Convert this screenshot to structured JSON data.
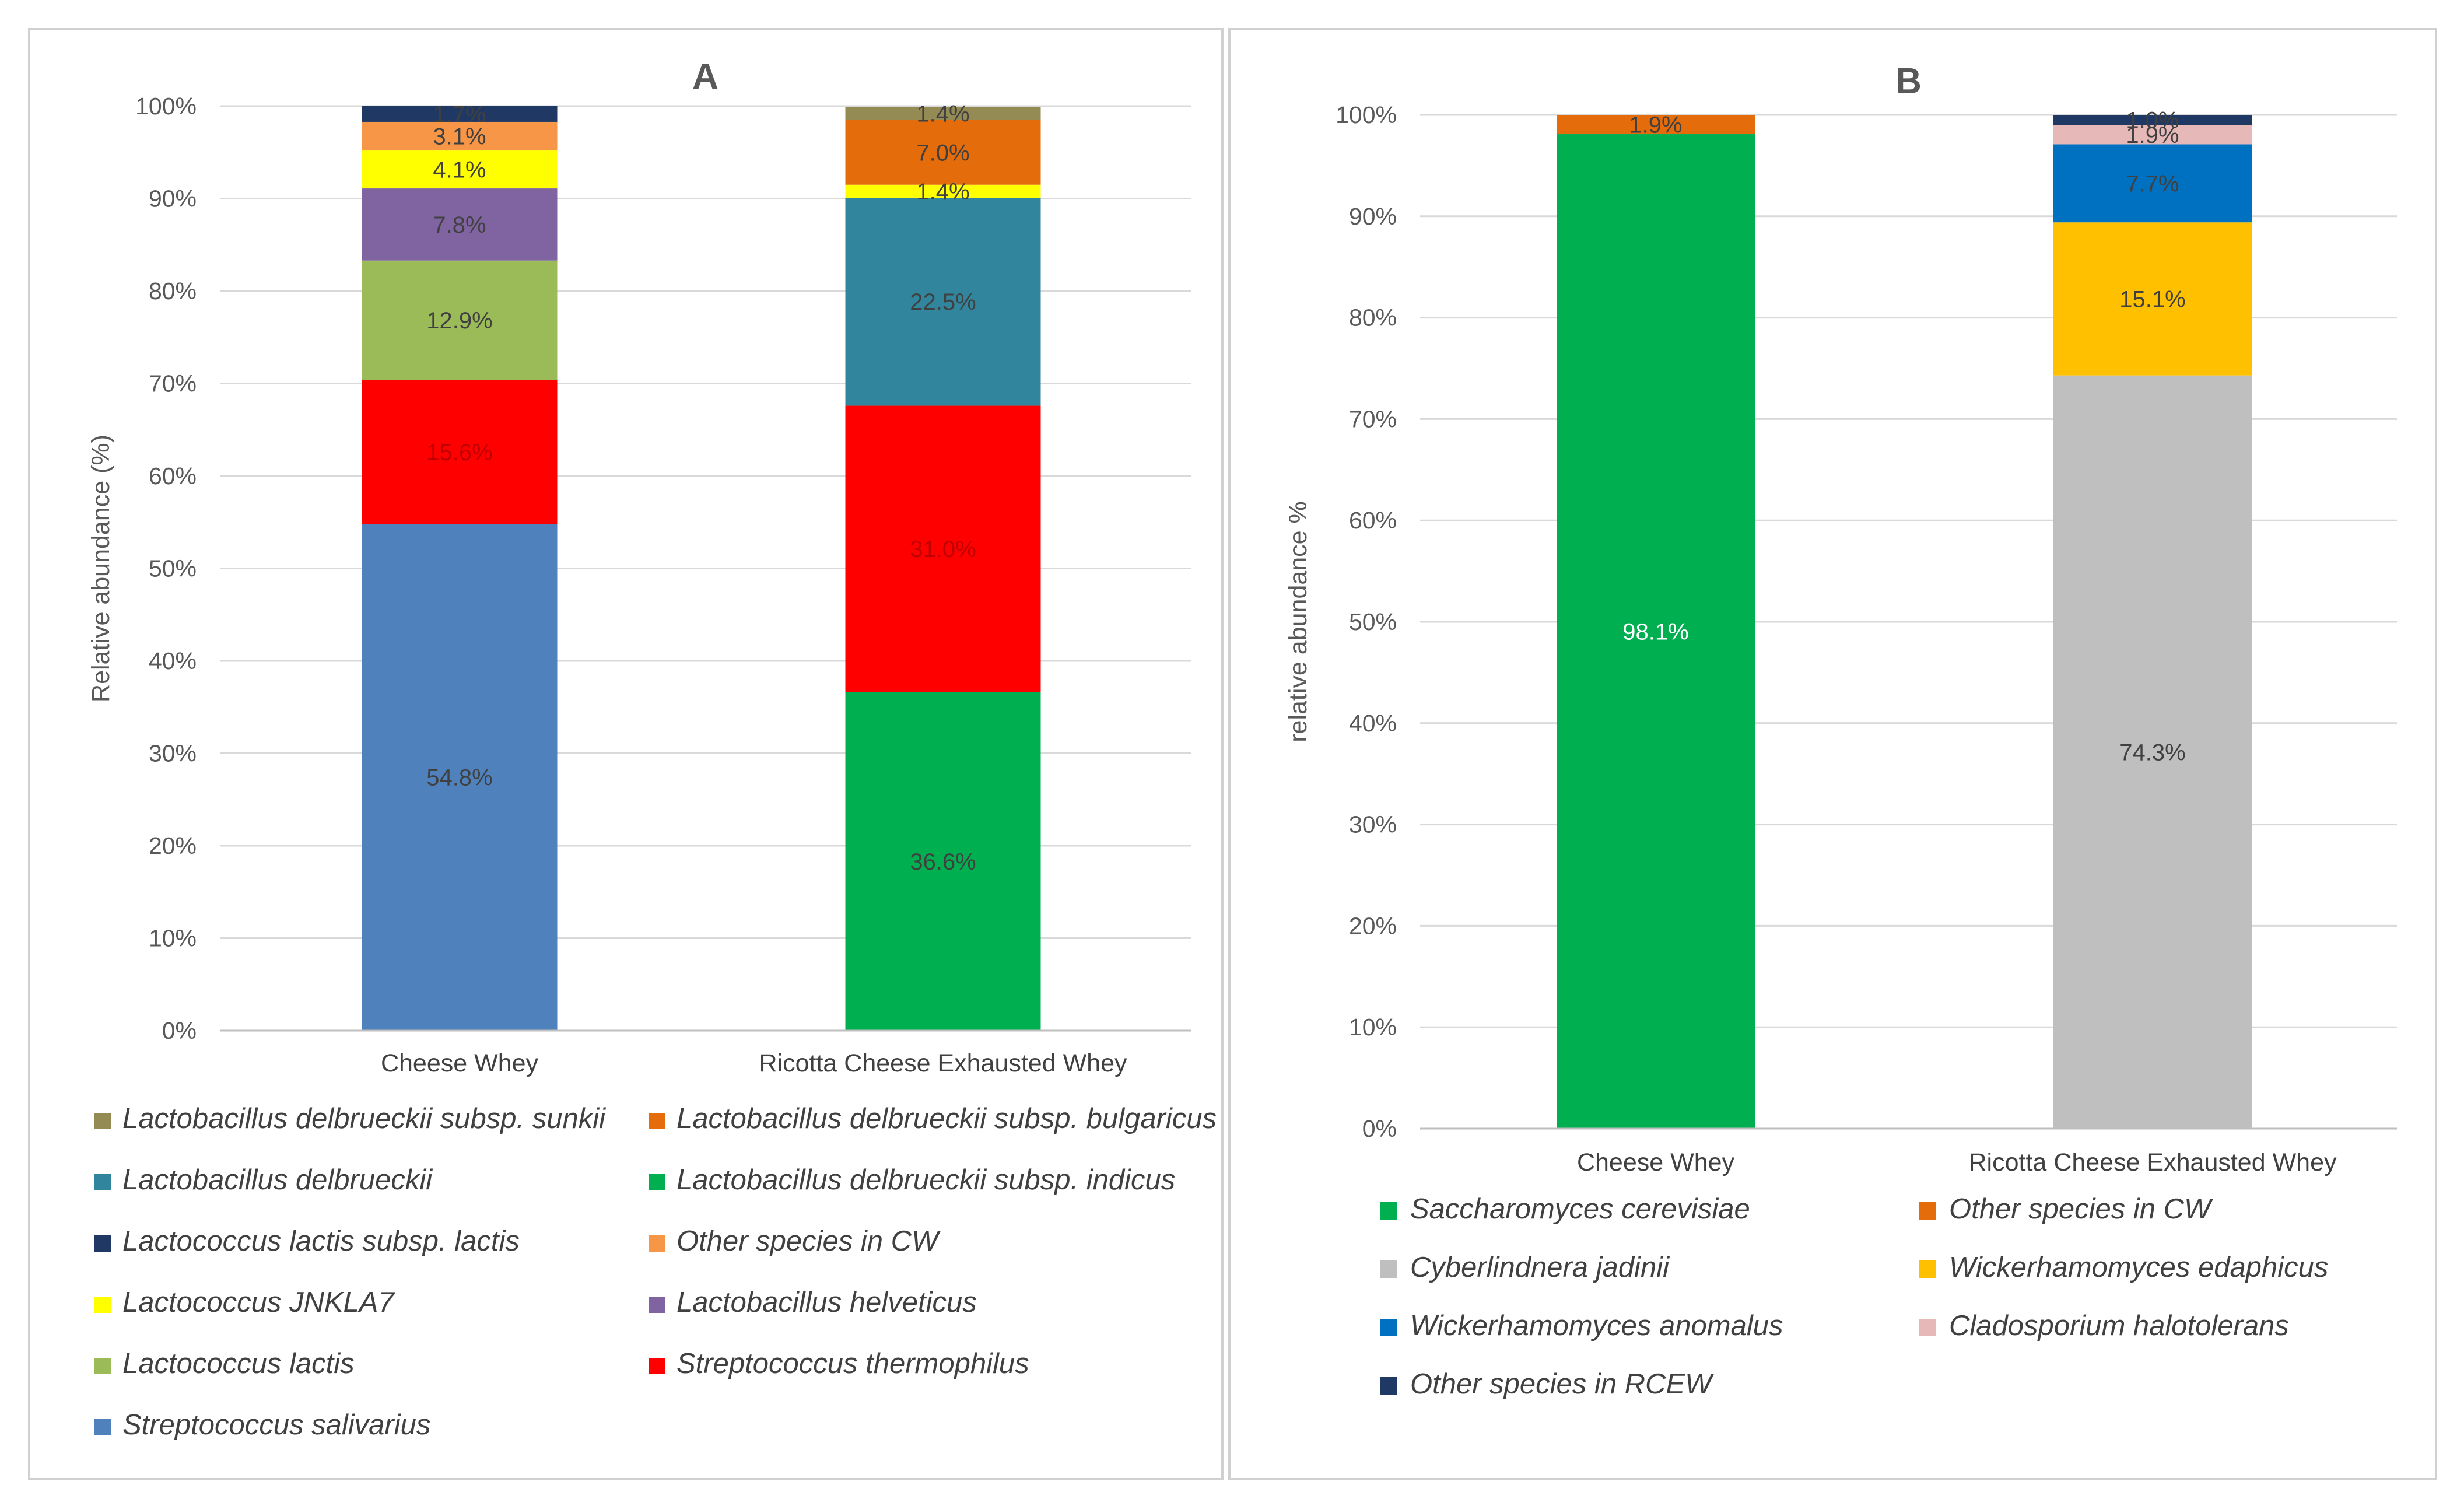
{
  "chart_data": [
    {
      "type": "bar",
      "stacked": true,
      "title": "A",
      "ylabel": "Relative abundance (%)",
      "xlabel": "",
      "ylim": [
        0,
        100
      ],
      "yticks": [
        "0%",
        "10%",
        "20%",
        "30%",
        "40%",
        "50%",
        "60%",
        "70%",
        "80%",
        "90%",
        "100%"
      ],
      "grid": true,
      "legend_position": "bottom",
      "categories": [
        "Cheese Whey",
        "Ricotta Cheese Exhausted Whey"
      ],
      "series": [
        {
          "name": "Streptococcus salivarius",
          "color": "#4f81bd",
          "values": [
            54.8,
            0
          ],
          "labels": [
            "54.8%",
            ""
          ],
          "label_color": "#404040"
        },
        {
          "name": "Lactobacillus delbrueckii subsp. indicus",
          "color": "#00b050",
          "values": [
            0,
            36.6
          ],
          "labels": [
            "",
            "36.6%"
          ],
          "label_color": "#404040"
        },
        {
          "name": "Streptococcus thermophilus",
          "color": "#ff0000",
          "values": [
            15.6,
            31.0
          ],
          "labels": [
            "15.6%",
            "31.0%"
          ],
          "label_color": "#c00000"
        },
        {
          "name": "Lactococcus lactis",
          "color": "#9bbb59",
          "values": [
            12.9,
            0
          ],
          "labels": [
            "12.9%",
            ""
          ],
          "label_color": "#404040"
        },
        {
          "name": "Lactobacillus delbrueckii",
          "color": "#31859c",
          "values": [
            0,
            22.5
          ],
          "labels": [
            "",
            "22.5%"
          ],
          "label_color": "#404040"
        },
        {
          "name": "Lactobacillus helveticus",
          "color": "#8064a2",
          "values": [
            7.8,
            0
          ],
          "labels": [
            "7.8%",
            ""
          ],
          "label_color": "#404040"
        },
        {
          "name": "Lactococcus JNKLA7",
          "color": "#ffff00",
          "values": [
            4.1,
            1.4
          ],
          "labels": [
            "4.1%",
            "1.4%"
          ],
          "label_color": "#404040"
        },
        {
          "name": "Other species in CW",
          "color": "#f79646",
          "values": [
            3.1,
            0
          ],
          "labels": [
            "3.1%",
            ""
          ],
          "label_color": "#404040"
        },
        {
          "name": "Lactobacillus delbrueckii subsp. bulgaricus",
          "color": "#e46c0a",
          "values": [
            0,
            7.0
          ],
          "labels": [
            "",
            "7.0%"
          ],
          "label_color": "#404040"
        },
        {
          "name": "Lactococcus lactis subsp. lactis",
          "color": "#1f3864",
          "values": [
            1.7,
            0
          ],
          "labels": [
            "1.7%",
            ""
          ],
          "label_color": "#404040"
        },
        {
          "name": "Lactobacillus delbrueckii subsp. sunkii",
          "color": "#948a54",
          "values": [
            0,
            1.4
          ],
          "labels": [
            "",
            "1.4%"
          ],
          "label_color": "#404040"
        }
      ],
      "legend_order": [
        10,
        8,
        4,
        1,
        9,
        7,
        6,
        5,
        3,
        2,
        0
      ]
    },
    {
      "type": "bar",
      "stacked": true,
      "title": "B",
      "ylabel": "relative abundance %",
      "xlabel": "",
      "ylim": [
        0,
        100
      ],
      "yticks": [
        "0%",
        "10%",
        "20%",
        "30%",
        "40%",
        "50%",
        "60%",
        "70%",
        "80%",
        "90%",
        "100%"
      ],
      "grid": true,
      "legend_position": "bottom",
      "categories": [
        "Cheese Whey",
        "Ricotta Cheese Exhausted Whey"
      ],
      "series": [
        {
          "name": "Saccharomyces cerevisiae",
          "color": "#00b050",
          "values": [
            98.1,
            0
          ],
          "labels": [
            "98.1%",
            ""
          ],
          "label_color": "#ffffff"
        },
        {
          "name": "Other species in CW",
          "color": "#e46c0a",
          "values": [
            1.9,
            0
          ],
          "labels": [
            "1.9%",
            ""
          ],
          "label_color": "#404040"
        },
        {
          "name": "Cyberlindnera jadinii",
          "color": "#bfbfbf",
          "values": [
            0,
            74.3
          ],
          "labels": [
            "",
            "74.3%"
          ],
          "label_color": "#404040"
        },
        {
          "name": "Wickerhamomyces edaphicus",
          "color": "#ffc000",
          "values": [
            0,
            15.1
          ],
          "labels": [
            "",
            "15.1%"
          ],
          "label_color": "#404040"
        },
        {
          "name": "Wickerhamomyces anomalus",
          "color": "#0070c0",
          "values": [
            0,
            7.7
          ],
          "labels": [
            "",
            "7.7%"
          ],
          "label_color": "#404040"
        },
        {
          "name": "Cladosporium halotolerans",
          "color": "#e6b9b8",
          "values": [
            0,
            1.9
          ],
          "labels": [
            "",
            "1.9%"
          ],
          "label_color": "#404040"
        },
        {
          "name": "Other species in RCEW",
          "color": "#1f3864",
          "values": [
            0,
            1.0
          ],
          "labels": [
            "",
            "1.0%"
          ],
          "label_color": "#404040"
        }
      ],
      "legend_order": [
        0,
        1,
        2,
        3,
        4,
        5,
        6
      ]
    }
  ]
}
